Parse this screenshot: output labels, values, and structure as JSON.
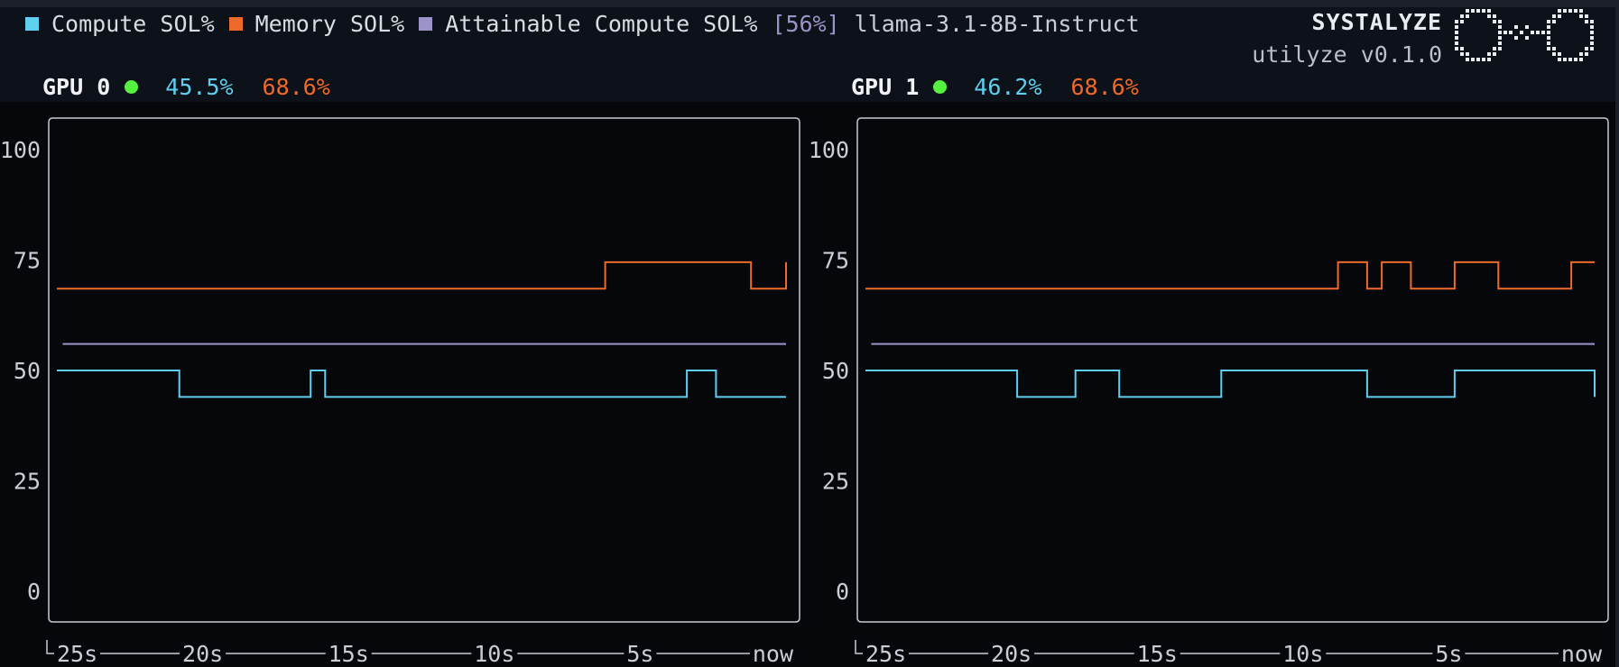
{
  "legend": {
    "items": [
      {
        "label": "Compute SOL%",
        "color": "#5fcfee"
      },
      {
        "label": "Memory SOL%",
        "color": "#ee6a2b"
      },
      {
        "label": "Attainable Compute SOL%",
        "color": "#9c94c8"
      }
    ],
    "attainable_bracket": "[56%]",
    "model": "llama-3.1-8B-Instruct"
  },
  "brand": {
    "name": "SYSTALYZE",
    "version": "utilyze v0.1.0",
    "logo_icon": "systalyze-logo-icon"
  },
  "colors": {
    "compute": "#5fcfee",
    "memory": "#ee6a2b",
    "attainable": "#9c94c8",
    "status": "#55f040"
  },
  "gpus": [
    {
      "name": "GPU 0",
      "compute": "45.5%",
      "memory": "68.6%"
    },
    {
      "name": "GPU 1",
      "compute": "46.2%",
      "memory": "68.6%"
    }
  ],
  "chart_data": [
    {
      "type": "line",
      "title": "GPU 0",
      "ylim": [
        0,
        100
      ],
      "y_ticks": [
        "100",
        "75",
        "50",
        "25",
        "0"
      ],
      "x_ticks": [
        "25s",
        "20s",
        "15s",
        "10s",
        "5s",
        "now"
      ],
      "series": [
        {
          "name": "Memory SOL%",
          "color": "#ee6a2b",
          "points": [
            [
              25,
              68.5
            ],
            [
              6.2,
              68.5
            ],
            [
              6.2,
              74.5
            ],
            [
              1.2,
              74.5
            ],
            [
              1.2,
              68.5
            ],
            [
              0,
              68.5
            ],
            [
              0,
              74.5
            ]
          ]
        },
        {
          "name": "Attainable Compute SOL%",
          "color": "#9c94c8",
          "points": [
            [
              24.8,
              56
            ],
            [
              0,
              56
            ]
          ]
        },
        {
          "name": "Compute SOL%",
          "color": "#5fcfee",
          "points": [
            [
              25,
              50
            ],
            [
              20.8,
              50
            ],
            [
              20.8,
              44
            ],
            [
              16.3,
              44
            ],
            [
              16.3,
              50
            ],
            [
              15.8,
              50
            ],
            [
              15.8,
              44
            ],
            [
              3.4,
              44
            ],
            [
              3.4,
              50
            ],
            [
              2.4,
              50
            ],
            [
              2.4,
              44
            ],
            [
              0,
              44
            ]
          ]
        }
      ]
    },
    {
      "type": "line",
      "title": "GPU 1",
      "ylim": [
        0,
        100
      ],
      "y_ticks": [
        "100",
        "75",
        "50",
        "25",
        "0"
      ],
      "x_ticks": [
        "25s",
        "20s",
        "15s",
        "10s",
        "5s",
        "now"
      ],
      "series": [
        {
          "name": "Memory SOL%",
          "color": "#ee6a2b",
          "points": [
            [
              25,
              68.5
            ],
            [
              8.8,
              68.5
            ],
            [
              8.8,
              74.5
            ],
            [
              7.8,
              74.5
            ],
            [
              7.8,
              68.5
            ],
            [
              7.3,
              68.5
            ],
            [
              7.3,
              74.5
            ],
            [
              6.3,
              74.5
            ],
            [
              6.3,
              68.5
            ],
            [
              4.8,
              68.5
            ],
            [
              4.8,
              74.5
            ],
            [
              3.3,
              74.5
            ],
            [
              3.3,
              68.5
            ],
            [
              0.8,
              68.5
            ],
            [
              0.8,
              74.5
            ],
            [
              0,
              74.5
            ]
          ]
        },
        {
          "name": "Attainable Compute SOL%",
          "color": "#9c94c8",
          "points": [
            [
              24.8,
              56
            ],
            [
              0,
              56
            ]
          ]
        },
        {
          "name": "Compute SOL%",
          "color": "#5fcfee",
          "points": [
            [
              25,
              50
            ],
            [
              19.8,
              50
            ],
            [
              19.8,
              44
            ],
            [
              17.8,
              44
            ],
            [
              17.8,
              50
            ],
            [
              16.3,
              50
            ],
            [
              16.3,
              44
            ],
            [
              12.8,
              44
            ],
            [
              12.8,
              50
            ],
            [
              7.8,
              50
            ],
            [
              7.8,
              44
            ],
            [
              4.8,
              44
            ],
            [
              4.8,
              50
            ],
            [
              0,
              50
            ],
            [
              0,
              44
            ]
          ]
        }
      ]
    }
  ]
}
